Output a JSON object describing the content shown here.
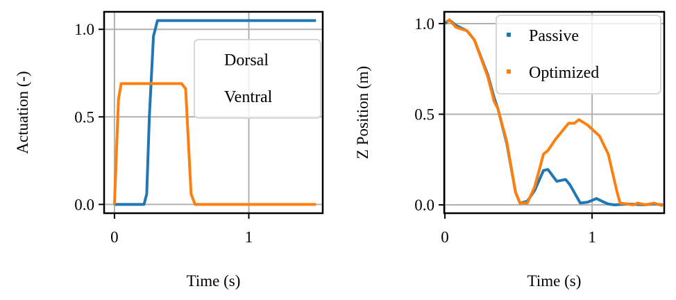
{
  "chart_data": [
    {
      "type": "line",
      "xlabel": "Time (s)",
      "ylabel": "Actuation (-)",
      "xlim": [
        -0.077,
        1.55
      ],
      "ylim": [
        -0.05,
        1.1
      ],
      "xticks": [
        "0",
        "1"
      ],
      "yticks": [
        "0.0",
        "0.5",
        "1.0"
      ],
      "grid": true,
      "legend": "top-right",
      "legend_markers": false,
      "series": [
        {
          "name": "Dorsal",
          "color": "#1f77b4",
          "x": [
            0,
            0.1,
            0.2,
            0.22,
            0.24,
            0.26,
            0.29,
            0.32,
            0.5,
            1.0,
            1.5
          ],
          "y": [
            0,
            0,
            0,
            0.0,
            0.06,
            0.5,
            0.96,
            1.05,
            1.05,
            1.05,
            1.05
          ]
        },
        {
          "name": "Ventral",
          "color": "#ff7f0e",
          "x": [
            0,
            0.03,
            0.05,
            0.2,
            0.4,
            0.5,
            0.53,
            0.57,
            0.6,
            1.0,
            1.5
          ],
          "y": [
            0,
            0.6,
            0.69,
            0.69,
            0.69,
            0.69,
            0.66,
            0.06,
            0,
            0,
            0
          ]
        }
      ]
    },
    {
      "type": "line",
      "xlabel": "Time (s)",
      "ylabel": "Z Position (m)",
      "xlim": [
        -0.005,
        1.49
      ],
      "ylim": [
        -0.046,
        1.065
      ],
      "xticks": [
        "0",
        "1"
      ],
      "yticks": [
        "0.0",
        "0.5",
        "1.0"
      ],
      "grid": true,
      "legend": "top-right",
      "legend_markers": true,
      "series": [
        {
          "name": "Passive",
          "color": "#1f77b4",
          "x": [
            0,
            0.03,
            0.075,
            0.15,
            0.2,
            0.29,
            0.335,
            0.36,
            0.42,
            0.48,
            0.51,
            0.56,
            0.61,
            0.67,
            0.7,
            0.76,
            0.82,
            0.85,
            0.92,
            0.97,
            1.03,
            1.08,
            1.11,
            1.15,
            1.25,
            1.35,
            1.42,
            1.48
          ],
          "y": [
            1.0,
            1.02,
            0.99,
            0.96,
            0.91,
            0.72,
            0.59,
            0.53,
            0.34,
            0.07,
            0.01,
            0.02,
            0.08,
            0.19,
            0.195,
            0.13,
            0.14,
            0.11,
            0.01,
            0.015,
            0.035,
            0.015,
            0.005,
            0.0,
            0.005,
            0.0,
            0.005,
            0.0
          ]
        },
        {
          "name": "Optimized",
          "color": "#ff7f0e",
          "x": [
            0.01,
            0.03,
            0.075,
            0.15,
            0.2,
            0.29,
            0.335,
            0.36,
            0.42,
            0.48,
            0.51,
            0.56,
            0.61,
            0.67,
            0.7,
            0.75,
            0.84,
            0.88,
            0.91,
            0.97,
            1.05,
            1.11,
            1.17,
            1.19,
            1.28,
            1.31,
            1.36,
            1.42,
            1.48
          ],
          "y": [
            1.01,
            1.02,
            0.98,
            0.96,
            0.91,
            0.71,
            0.57,
            0.53,
            0.35,
            0.07,
            0.01,
            0.01,
            0.1,
            0.28,
            0.3,
            0.36,
            0.45,
            0.45,
            0.47,
            0.44,
            0.38,
            0.28,
            0.07,
            0.01,
            0.0,
            0.01,
            0.0,
            0.01,
            -0.005
          ]
        }
      ]
    }
  ]
}
